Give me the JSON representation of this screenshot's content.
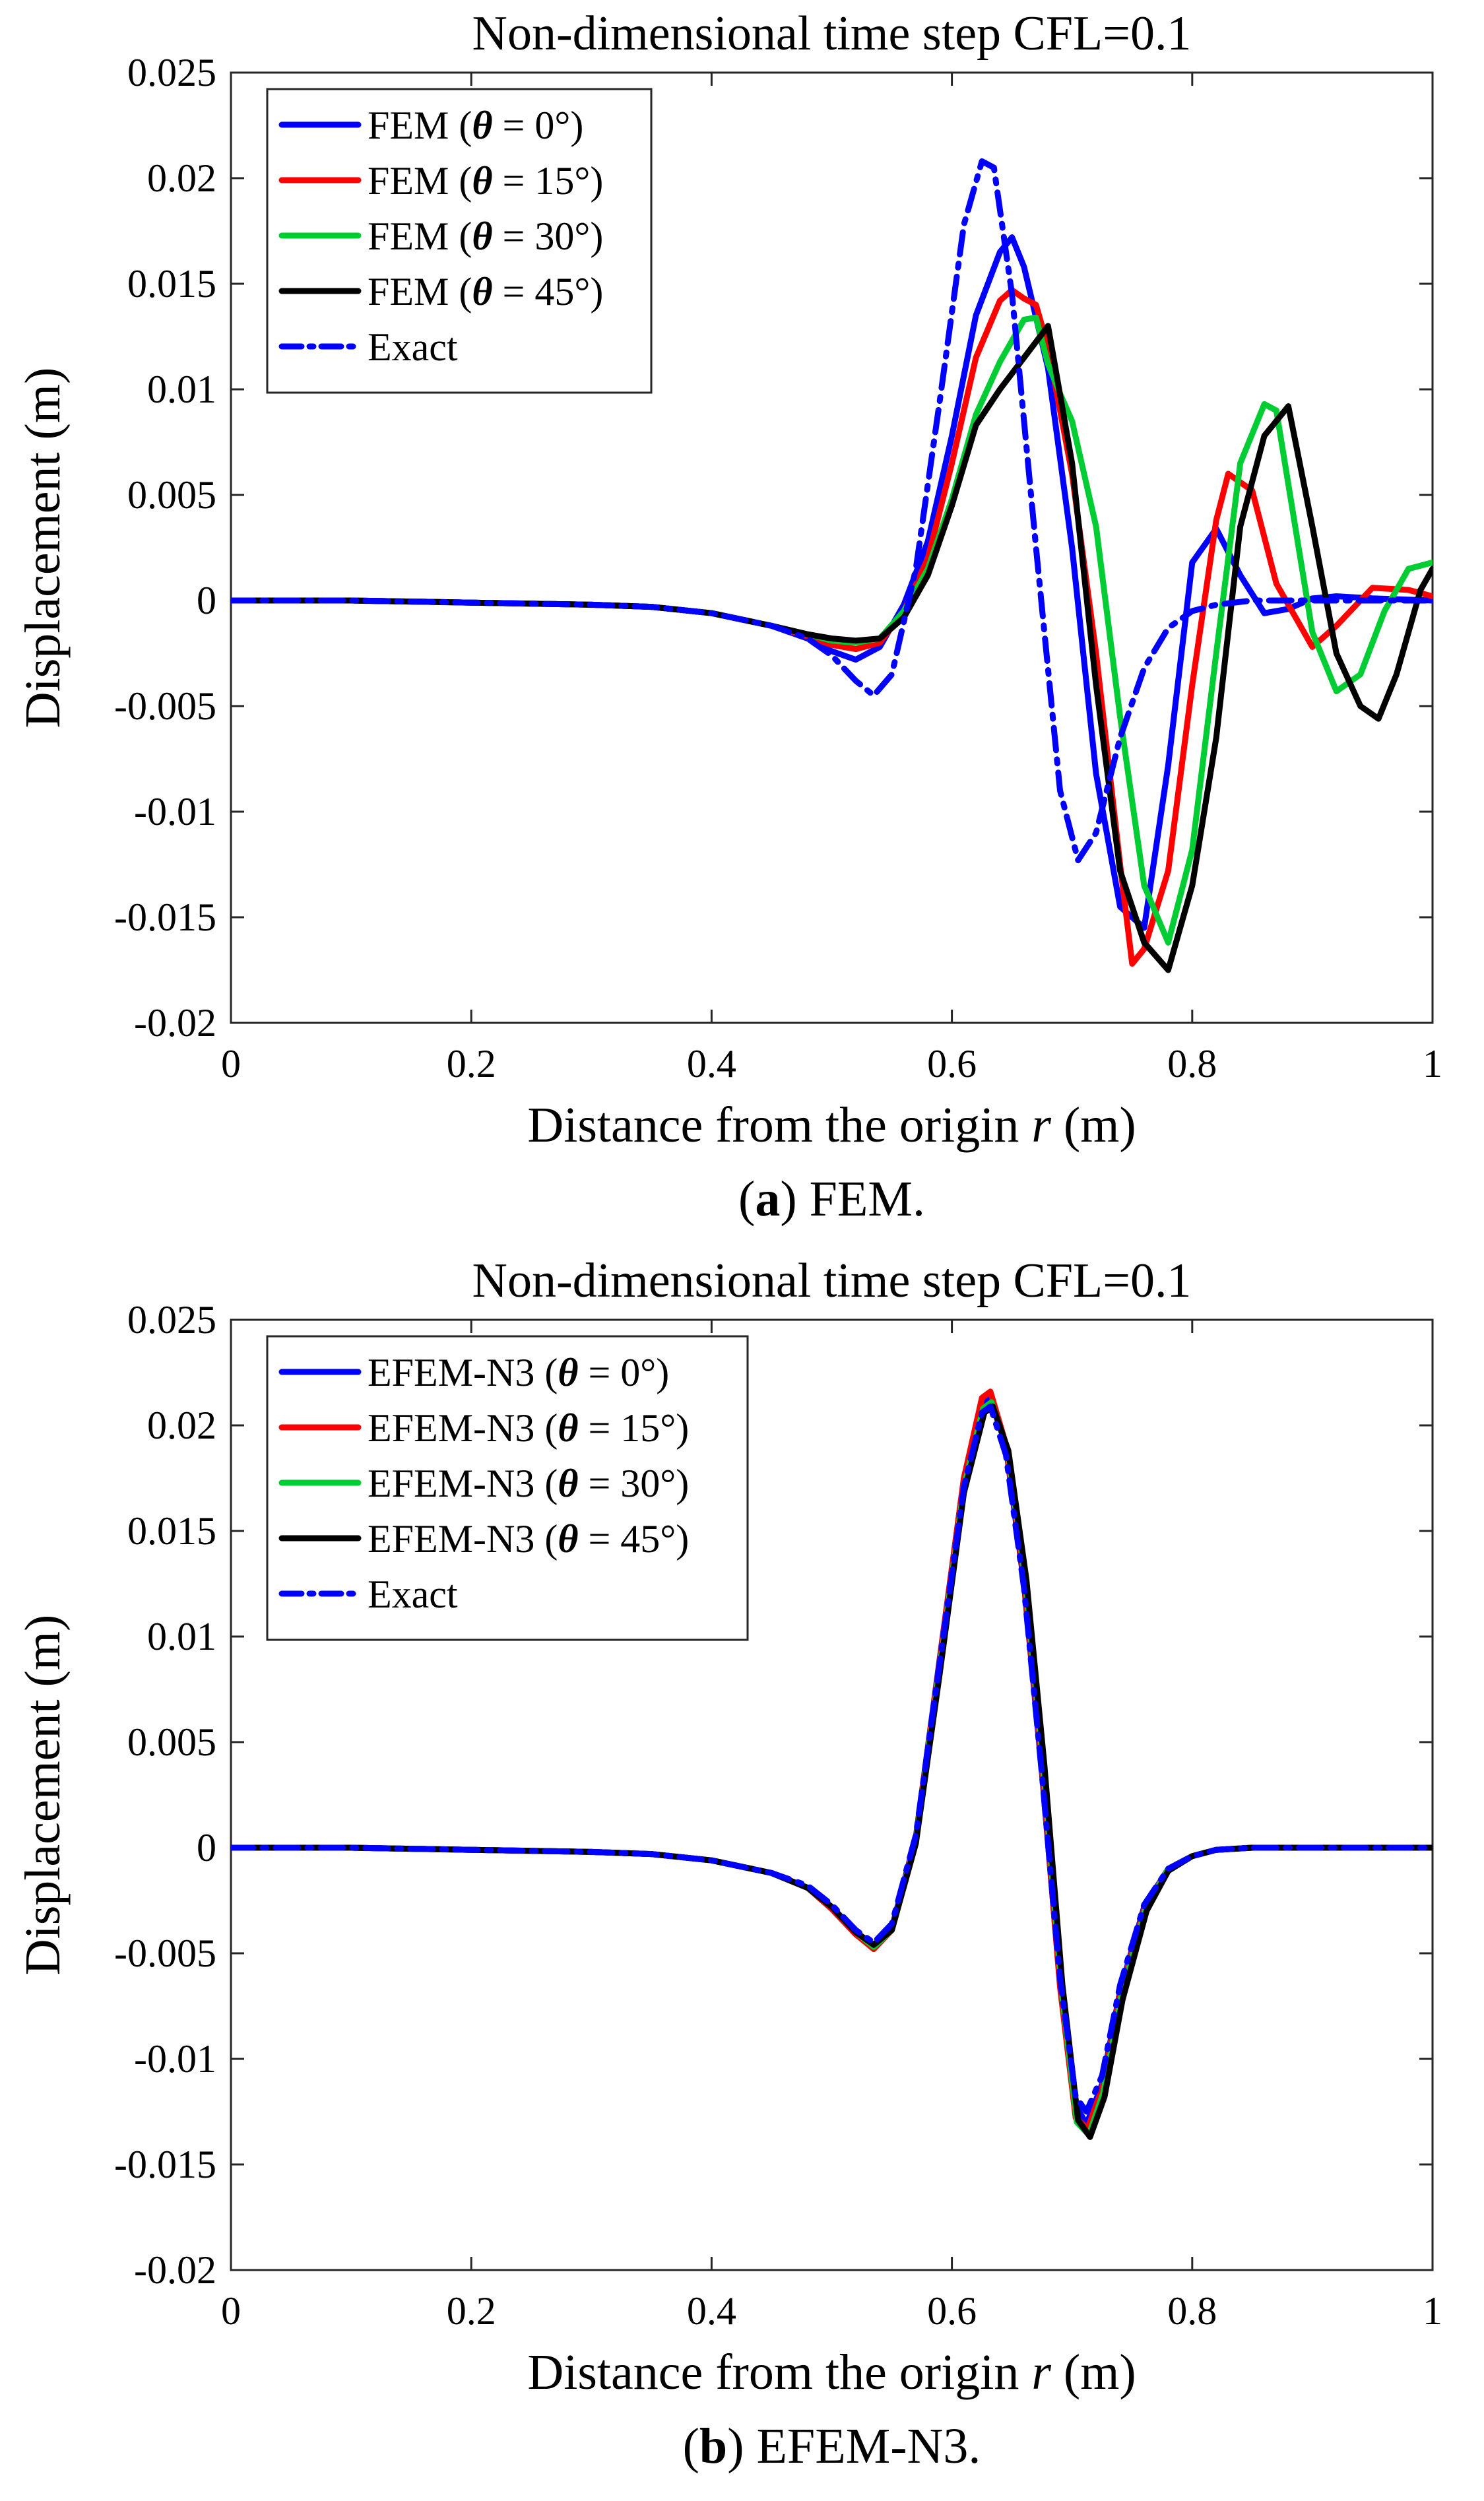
{
  "chart_data": [
    {
      "id": "a",
      "type": "line",
      "title": "Non-dimensional time step CFL=0.1",
      "xlabel": "Distance from the origin r (m)",
      "xlabel_parts": {
        "before": "Distance from the origin ",
        "var": "r",
        "after": " (m)"
      },
      "ylabel": "Displacement (m)",
      "caption": {
        "label": "a",
        "text": " FEM."
      },
      "xlim": [
        0,
        1
      ],
      "ylim": [
        -0.02,
        0.025
      ],
      "xticks": [
        0,
        0.2,
        0.4,
        0.6,
        0.8,
        1
      ],
      "xtick_labels": [
        "0",
        "0.2",
        "0.4",
        "0.6",
        "0.8",
        "1"
      ],
      "yticks": [
        -0.02,
        -0.015,
        -0.01,
        -0.005,
        0,
        0.005,
        0.01,
        0.015,
        0.02,
        0.025
      ],
      "ytick_labels": [
        "-0.02",
        "-0.015",
        "-0.01",
        "-0.005",
        "0",
        "0.005",
        "0.01",
        "0.015",
        "0.02",
        "0.025"
      ],
      "legend_position": "top-left",
      "series": [
        {
          "name": "FEM (θ = 0°)",
          "label": {
            "before": "FEM (",
            "theta": "θ",
            "after": " = 0°)"
          },
          "color": "#0000ff",
          "style": "solid",
          "x": [
            0,
            0.1,
            0.2,
            0.3,
            0.35,
            0.4,
            0.45,
            0.48,
            0.5,
            0.52,
            0.54,
            0.56,
            0.58,
            0.6,
            0.62,
            0.64,
            0.65,
            0.66,
            0.68,
            0.7,
            0.72,
            0.74,
            0.76,
            0.78,
            0.8,
            0.82,
            0.84,
            0.86,
            0.88,
            0.9,
            0.92,
            0.95,
            1
          ],
          "y": [
            0,
            0,
            -0.0001,
            -0.0002,
            -0.0003,
            -0.0006,
            -0.0012,
            -0.0018,
            -0.0024,
            -0.0028,
            -0.0022,
            -0.0002,
            0.0028,
            0.0078,
            0.0135,
            0.0165,
            0.0172,
            0.0158,
            0.011,
            0.0025,
            -0.0082,
            -0.0145,
            -0.0155,
            -0.0078,
            0.0018,
            0.0034,
            0.0012,
            -0.0006,
            -0.0004,
            0.0001,
            0.0002,
            0.0001,
            0
          ]
        },
        {
          "name": "FEM (θ = 15°)",
          "label": {
            "before": "FEM (",
            "theta": "θ",
            "after": " = 15°)"
          },
          "color": "#ff0000",
          "style": "solid",
          "x": [
            0,
            0.1,
            0.2,
            0.3,
            0.35,
            0.4,
            0.45,
            0.48,
            0.5,
            0.52,
            0.54,
            0.56,
            0.58,
            0.6,
            0.62,
            0.64,
            0.65,
            0.66,
            0.67,
            0.68,
            0.7,
            0.72,
            0.74,
            0.75,
            0.76,
            0.78,
            0.8,
            0.82,
            0.83,
            0.85,
            0.87,
            0.9,
            0.92,
            0.95,
            0.98,
            1
          ],
          "y": [
            0,
            0,
            -0.0001,
            -0.0002,
            -0.0003,
            -0.0006,
            -0.0012,
            -0.0017,
            -0.0021,
            -0.0023,
            -0.002,
            -0.0005,
            0.002,
            0.0065,
            0.0115,
            0.0142,
            0.0147,
            0.0143,
            0.014,
            0.012,
            0.006,
            -0.0025,
            -0.0125,
            -0.0172,
            -0.0165,
            -0.0128,
            -0.004,
            0.0038,
            0.006,
            0.0052,
            0.0008,
            -0.0022,
            -0.0012,
            0.0006,
            0.0005,
            0.0002
          ]
        },
        {
          "name": "FEM (θ = 30°)",
          "label": {
            "before": "FEM (",
            "theta": "θ",
            "after": " = 30°)"
          },
          "color": "#00cc33",
          "style": "solid",
          "x": [
            0,
            0.1,
            0.2,
            0.3,
            0.35,
            0.4,
            0.45,
            0.48,
            0.5,
            0.52,
            0.54,
            0.56,
            0.58,
            0.6,
            0.62,
            0.64,
            0.66,
            0.67,
            0.68,
            0.69,
            0.7,
            0.72,
            0.74,
            0.76,
            0.78,
            0.8,
            0.82,
            0.84,
            0.86,
            0.87,
            0.88,
            0.9,
            0.92,
            0.94,
            0.96,
            0.98,
            1
          ],
          "y": [
            0,
            0,
            -0.0001,
            -0.0002,
            -0.0003,
            -0.0006,
            -0.0012,
            -0.0016,
            -0.0019,
            -0.002,
            -0.0018,
            -0.0005,
            0.0015,
            0.0048,
            0.0088,
            0.0113,
            0.0133,
            0.0134,
            0.0112,
            0.0098,
            0.0085,
            0.0035,
            -0.0055,
            -0.0135,
            -0.0162,
            -0.0118,
            -0.0025,
            0.0065,
            0.0093,
            0.009,
            0.0055,
            -0.0015,
            -0.0043,
            -0.0035,
            -0.0005,
            0.0015,
            0.0018
          ]
        },
        {
          "name": "FEM (θ = 45°)",
          "label": {
            "before": "FEM (",
            "theta": "θ",
            "after": " = 45°)"
          },
          "color": "#000000",
          "style": "solid",
          "x": [
            0,
            0.1,
            0.2,
            0.3,
            0.35,
            0.4,
            0.45,
            0.48,
            0.5,
            0.52,
            0.54,
            0.56,
            0.58,
            0.6,
            0.62,
            0.64,
            0.66,
            0.68,
            0.7,
            0.72,
            0.74,
            0.76,
            0.78,
            0.8,
            0.82,
            0.84,
            0.86,
            0.88,
            0.9,
            0.92,
            0.94,
            0.955,
            0.97,
            0.99,
            1
          ],
          "y": [
            0,
            0,
            -0.0001,
            -0.0002,
            -0.0003,
            -0.0006,
            -0.0012,
            -0.0016,
            -0.0018,
            -0.0019,
            -0.0018,
            -0.0008,
            0.0012,
            0.0045,
            0.0083,
            0.01,
            0.0115,
            0.013,
            0.0065,
            -0.004,
            -0.0128,
            -0.0162,
            -0.0175,
            -0.0135,
            -0.0065,
            0.0035,
            0.0078,
            0.0092,
            0.0035,
            -0.0025,
            -0.005,
            -0.0056,
            -0.0035,
            0.0005,
            0.0015
          ]
        },
        {
          "name": "Exact",
          "label": {
            "before": "Exact",
            "theta": "",
            "after": ""
          },
          "color": "#0000ff",
          "style": "dashdot",
          "x": [
            0,
            0.1,
            0.2,
            0.3,
            0.35,
            0.4,
            0.45,
            0.48,
            0.5,
            0.52,
            0.535,
            0.55,
            0.57,
            0.59,
            0.61,
            0.625,
            0.635,
            0.65,
            0.67,
            0.69,
            0.705,
            0.72,
            0.74,
            0.76,
            0.78,
            0.8,
            0.82,
            0.85,
            0.9,
            0.95,
            1
          ],
          "y": [
            0,
            0,
            -0.0001,
            -0.0002,
            -0.0003,
            -0.0006,
            -0.0012,
            -0.0018,
            -0.0026,
            -0.0038,
            -0.0045,
            -0.0035,
            0.0015,
            0.0095,
            0.0178,
            0.0208,
            0.0205,
            0.0145,
            0.0025,
            -0.009,
            -0.0123,
            -0.011,
            -0.0065,
            -0.0032,
            -0.0013,
            -0.0005,
            -0.0002,
            0,
            0,
            0,
            0
          ]
        }
      ]
    },
    {
      "id": "b",
      "type": "line",
      "title": "Non-dimensional time step CFL=0.1",
      "xlabel": "Distance from the origin r (m)",
      "xlabel_parts": {
        "before": "Distance from the origin ",
        "var": "r",
        "after": " (m)"
      },
      "ylabel": "Displacement (m)",
      "caption": {
        "label": "b",
        "text": " EFEM-N3."
      },
      "xlim": [
        0,
        1
      ],
      "ylim": [
        -0.02,
        0.025
      ],
      "xticks": [
        0,
        0.2,
        0.4,
        0.6,
        0.8,
        1
      ],
      "xtick_labels": [
        "0",
        "0.2",
        "0.4",
        "0.6",
        "0.8",
        "1"
      ],
      "yticks": [
        -0.02,
        -0.015,
        -0.01,
        -0.005,
        0,
        0.005,
        0.01,
        0.015,
        0.02,
        0.025
      ],
      "ytick_labels": [
        "-0.02",
        "-0.015",
        "-0.01",
        "-0.005",
        "0",
        "0.005",
        "0.01",
        "0.015",
        "0.02",
        "0.025"
      ],
      "legend_position": "top-left",
      "series": [
        {
          "name": "EFEM-N3 (θ = 0°)",
          "label": {
            "before": "EFEM-N3 (",
            "theta": "θ",
            "after": " = 0°)"
          },
          "color": "#0000ff",
          "style": "solid",
          "x": [
            0,
            0.1,
            0.2,
            0.3,
            0.35,
            0.4,
            0.45,
            0.48,
            0.5,
            0.52,
            0.535,
            0.55,
            0.57,
            0.59,
            0.61,
            0.625,
            0.632,
            0.645,
            0.66,
            0.675,
            0.69,
            0.703,
            0.712,
            0.725,
            0.74,
            0.76,
            0.78,
            0.8,
            0.82,
            0.85,
            0.9,
            1
          ],
          "y": [
            0,
            0,
            -0.0001,
            -0.0002,
            -0.0003,
            -0.0006,
            -0.0012,
            -0.0019,
            -0.0029,
            -0.0041,
            -0.0047,
            -0.0038,
            0.0005,
            0.009,
            0.0175,
            0.0211,
            0.0214,
            0.019,
            0.0125,
            0.0035,
            -0.0065,
            -0.0122,
            -0.0131,
            -0.0112,
            -0.0068,
            -0.0028,
            -0.001,
            -0.0004,
            -0.0001,
            0,
            0,
            0
          ]
        },
        {
          "name": "EFEM-N3 (θ = 15°)",
          "label": {
            "before": "EFEM-N3 (",
            "theta": "θ",
            "after": " = 15°)"
          },
          "color": "#ff0000",
          "style": "solid",
          "x": [
            0,
            0.1,
            0.2,
            0.3,
            0.35,
            0.4,
            0.45,
            0.48,
            0.5,
            0.52,
            0.535,
            0.55,
            0.57,
            0.59,
            0.61,
            0.625,
            0.632,
            0.645,
            0.66,
            0.675,
            0.69,
            0.703,
            0.713,
            0.725,
            0.74,
            0.76,
            0.78,
            0.8,
            0.82,
            0.85,
            0.9,
            1
          ],
          "y": [
            0,
            0,
            -0.0001,
            -0.0002,
            -0.0003,
            -0.0006,
            -0.0012,
            -0.0019,
            -0.0029,
            -0.0041,
            -0.0048,
            -0.0039,
            0.0004,
            0.0089,
            0.0175,
            0.0213,
            0.0216,
            0.0191,
            0.0127,
            0.0037,
            -0.0066,
            -0.0128,
            -0.0133,
            -0.0114,
            -0.0069,
            -0.0029,
            -0.001,
            -0.0004,
            -0.0001,
            0,
            0,
            0
          ]
        },
        {
          "name": "EFEM-N3 (θ = 30°)",
          "label": {
            "before": "EFEM-N3 (",
            "theta": "θ",
            "after": " = 30°)"
          },
          "color": "#00cc33",
          "style": "solid",
          "x": [
            0,
            0.1,
            0.2,
            0.3,
            0.35,
            0.4,
            0.45,
            0.48,
            0.5,
            0.52,
            0.535,
            0.55,
            0.57,
            0.59,
            0.61,
            0.626,
            0.633,
            0.646,
            0.661,
            0.676,
            0.691,
            0.704,
            0.714,
            0.726,
            0.741,
            0.761,
            0.78,
            0.8,
            0.82,
            0.85,
            0.9,
            1
          ],
          "y": [
            0,
            0,
            -0.0001,
            -0.0002,
            -0.0003,
            -0.0006,
            -0.0012,
            -0.0019,
            -0.0028,
            -0.004,
            -0.0047,
            -0.0039,
            0.0003,
            0.0086,
            0.0171,
            0.0208,
            0.0211,
            0.0189,
            0.0127,
            0.0038,
            -0.0066,
            -0.013,
            -0.0136,
            -0.0116,
            -0.007,
            -0.0029,
            -0.001,
            -0.0004,
            -0.0001,
            0,
            0,
            0
          ]
        },
        {
          "name": "EFEM-N3 (θ = 45°)",
          "label": {
            "before": "EFEM-N3 (",
            "theta": "θ",
            "after": " = 45°)"
          },
          "color": "#000000",
          "style": "solid",
          "x": [
            0,
            0.1,
            0.2,
            0.3,
            0.35,
            0.4,
            0.45,
            0.48,
            0.5,
            0.52,
            0.535,
            0.55,
            0.57,
            0.59,
            0.61,
            0.627,
            0.634,
            0.647,
            0.662,
            0.677,
            0.692,
            0.705,
            0.715,
            0.727,
            0.742,
            0.762,
            0.78,
            0.8,
            0.82,
            0.85,
            0.9,
            1
          ],
          "y": [
            0,
            0,
            -0.0001,
            -0.0002,
            -0.0003,
            -0.0006,
            -0.0012,
            -0.0019,
            -0.0028,
            -0.004,
            -0.0046,
            -0.0039,
            0.0002,
            0.0083,
            0.0168,
            0.0206,
            0.0209,
            0.0188,
            0.0127,
            0.0039,
            -0.0065,
            -0.0129,
            -0.0137,
            -0.0118,
            -0.0072,
            -0.003,
            -0.0011,
            -0.0004,
            -0.0001,
            0,
            0,
            0
          ]
        },
        {
          "name": "Exact",
          "label": {
            "before": "Exact",
            "theta": "",
            "after": ""
          },
          "color": "#0000ff",
          "style": "dashdot",
          "x": [
            0,
            0.1,
            0.2,
            0.3,
            0.35,
            0.4,
            0.45,
            0.48,
            0.5,
            0.52,
            0.535,
            0.55,
            0.57,
            0.59,
            0.61,
            0.625,
            0.632,
            0.645,
            0.66,
            0.675,
            0.69,
            0.703,
            0.712,
            0.725,
            0.74,
            0.76,
            0.78,
            0.8,
            0.82,
            0.85,
            0.9,
            1
          ],
          "y": [
            0,
            0,
            -0.0001,
            -0.0002,
            -0.0003,
            -0.0006,
            -0.0012,
            -0.0018,
            -0.0027,
            -0.0039,
            -0.0045,
            -0.0036,
            0.0006,
            0.0088,
            0.0171,
            0.0206,
            0.0209,
            0.0186,
            0.0123,
            0.0034,
            -0.0062,
            -0.0118,
            -0.0125,
            -0.0108,
            -0.0065,
            -0.0027,
            -0.001,
            -0.0004,
            -0.0001,
            0,
            0,
            0
          ]
        }
      ]
    }
  ]
}
